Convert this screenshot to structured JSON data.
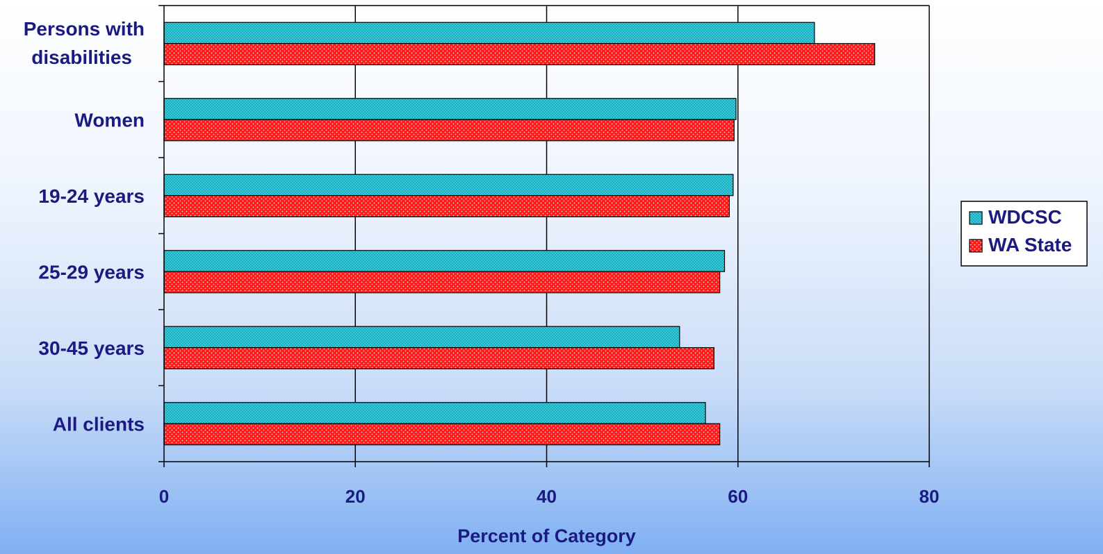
{
  "chart_data": {
    "type": "bar",
    "orientation": "horizontal",
    "categories": [
      [
        "Persons with",
        "disabilities"
      ],
      [
        "Women"
      ],
      [
        "19-24 years"
      ],
      [
        "25-29 years"
      ],
      [
        "30-45 years"
      ],
      [
        "All clients"
      ]
    ],
    "series": [
      {
        "name": "WDCSC",
        "color": "#33ccdd",
        "values": [
          68,
          59.8,
          59.5,
          58.6,
          53.9,
          56.6
        ]
      },
      {
        "name": "WA State",
        "color": "#ff1a1a",
        "values": [
          74.3,
          59.6,
          59.1,
          58.1,
          57.5,
          58.1
        ]
      }
    ],
    "xlabel": "Percent of Category",
    "ylabel": "",
    "xlim": [
      0,
      80
    ],
    "xticks": [
      "0",
      "20",
      "40",
      "60",
      "80"
    ],
    "grid": "vertical",
    "legend_position": "right"
  }
}
